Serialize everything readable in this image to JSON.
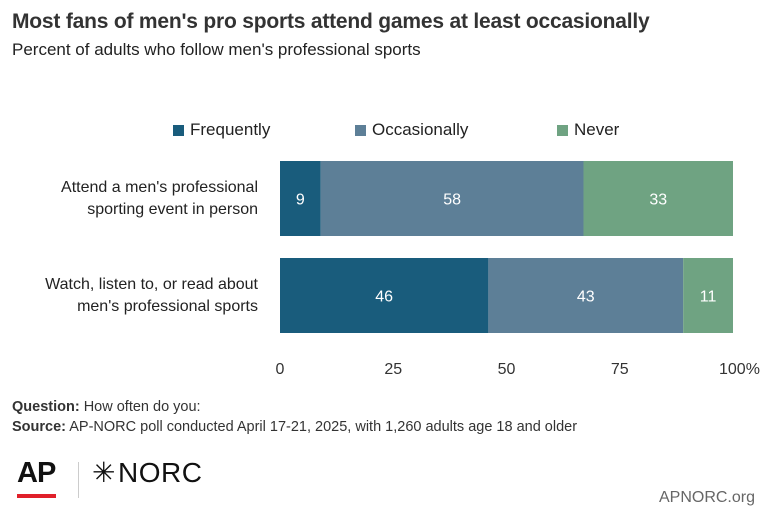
{
  "title": "Most fans of men's pro sports attend games at least occasionally",
  "subtitle": "Percent of adults who follow men's professional sports",
  "chart_data": {
    "type": "bar",
    "orientation": "horizontal-stacked",
    "categories": [
      [
        "Attend a men's professional",
        "sporting event in person"
      ],
      [
        "Watch, listen to, or read about",
        "men's professional sports"
      ]
    ],
    "series": [
      {
        "name": "Frequently",
        "values": [
          9,
          46
        ],
        "color": "#195c7c"
      },
      {
        "name": "Occasionally",
        "values": [
          58,
          43
        ],
        "color": "#5d7f97"
      },
      {
        "name": "Never",
        "values": [
          33,
          11
        ],
        "color": "#6fa382"
      }
    ],
    "xlim": [
      0,
      100
    ],
    "xticks": [
      "0",
      "25",
      "50",
      "75",
      "100%"
    ],
    "legend_position": "top",
    "grid": false
  },
  "footnotes": {
    "question_label": "Question:",
    "question_text": "How often do you:",
    "source_label": "Source:",
    "source_text": "AP-NORC poll conducted April 17-21, 2025, with 1,260 adults age 18 and older"
  },
  "logos": {
    "ap": "AP",
    "norc": "NORC",
    "norc_icon": "star-icon"
  },
  "site": "APNORC.org"
}
